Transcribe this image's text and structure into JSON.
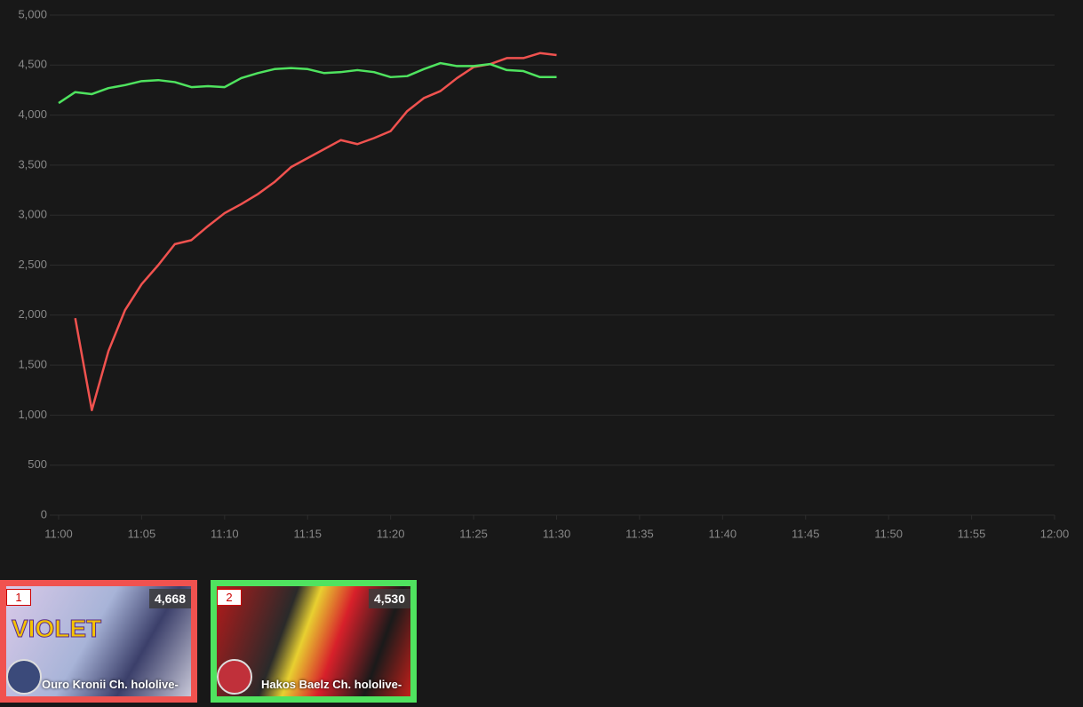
{
  "chart_data": {
    "type": "line",
    "x": [
      "11:00",
      "11:01",
      "11:02",
      "11:03",
      "11:04",
      "11:05",
      "11:06",
      "11:07",
      "11:08",
      "11:09",
      "11:10",
      "11:11",
      "11:12",
      "11:13",
      "11:14",
      "11:15",
      "11:16",
      "11:17",
      "11:18",
      "11:19",
      "11:20",
      "11:21",
      "11:22",
      "11:23",
      "11:24",
      "11:25",
      "11:26",
      "11:27",
      "11:28",
      "11:29",
      "11:30"
    ],
    "series": [
      {
        "name": "Ouro Kronii Ch. hololive-",
        "color": "#f0524f",
        "values": [
          null,
          1970,
          1050,
          1640,
          2050,
          2310,
          2500,
          2710,
          2750,
          2890,
          3020,
          3110,
          3210,
          3330,
          3480,
          3570,
          3660,
          3750,
          3710,
          3770,
          3840,
          4040,
          4170,
          4240,
          4370,
          4480,
          4510,
          4570,
          4570,
          4620,
          4600
        ]
      },
      {
        "name": "Hakos Baelz Ch. hololive-",
        "color": "#4fe35f",
        "values": [
          4120,
          4230,
          4210,
          4270,
          4300,
          4340,
          4350,
          4330,
          4280,
          4290,
          4280,
          4370,
          4420,
          4460,
          4470,
          4460,
          4420,
          4430,
          4450,
          4430,
          4380,
          4390,
          4460,
          4520,
          4490,
          4490,
          4510,
          4450,
          4440,
          4380,
          4380
        ]
      }
    ],
    "xlim": [
      "11:00",
      "12:00"
    ],
    "xticks": [
      "11:00",
      "11:05",
      "11:10",
      "11:15",
      "11:20",
      "11:25",
      "11:30",
      "11:35",
      "11:40",
      "11:45",
      "11:50",
      "11:55",
      "12:00"
    ],
    "ylim": [
      0,
      5000
    ],
    "yticks": [
      0,
      500,
      {
        "value": 1000,
        "label": "1,000"
      },
      {
        "value": 1500,
        "label": "1,500"
      },
      {
        "value": 2000,
        "label": "2,000"
      },
      {
        "value": 2500,
        "label": "2,500"
      },
      {
        "value": 3000,
        "label": "3,000"
      },
      {
        "value": 3500,
        "label": "3,500"
      },
      {
        "value": 4000,
        "label": "4,000"
      },
      {
        "value": 4500,
        "label": "4,500"
      },
      {
        "value": 5000,
        "label": "5,000"
      }
    ],
    "grid": true
  },
  "cards": [
    {
      "rank": "1",
      "viewers": "4,668",
      "channel": "Ouro Kronii Ch. hololive-",
      "thumbnail_text": "VIOLET"
    },
    {
      "rank": "2",
      "viewers": "4,530",
      "channel": "Hakos Baelz Ch. hololive-"
    }
  ]
}
